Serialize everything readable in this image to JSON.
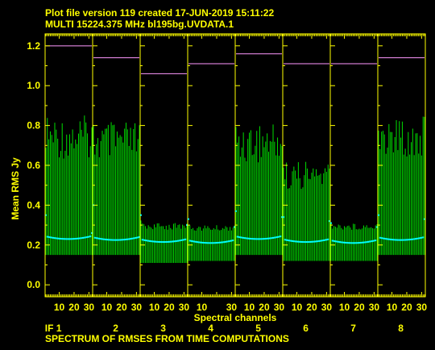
{
  "header": {
    "line1": "Plot file version 119  created 17-JUN-2019 15:11:22",
    "line2": "MULTI 15224.375 MHz  bl195bg.UVDATA.1"
  },
  "footer": "SPECTRUM OF RMSES FROM TIME COMPUTATIONS",
  "colors": {
    "background": "#000000",
    "axes_text": "#ffff00",
    "error_bars": "#00dd00",
    "points": "#00ffff",
    "reference_line": "#ff99ff"
  },
  "chart_data": {
    "type": "scatter",
    "title": "",
    "xlabel": "Spectral channels",
    "ylabel": "Mean RMS Jy",
    "ylim": [
      -0.06,
      1.26
    ],
    "yticks": [
      0.0,
      0.2,
      0.4,
      0.6,
      0.8,
      1.0,
      1.2
    ],
    "channels_per_if": 32,
    "panels": [
      {
        "if_label": "IF 1",
        "xticks": [
          "10",
          "20",
          "30"
        ],
        "reference": 1.2,
        "base": 0.23,
        "edge_low": 0.35,
        "edge_high": 0.26,
        "bar_low": 0.15,
        "bar_high": 0.85
      },
      {
        "if_label": "2",
        "xticks": [
          "10",
          "20",
          "30"
        ],
        "reference": 1.14,
        "base": 0.225,
        "edge_low": 0.4,
        "edge_high": 0.24,
        "bar_low": 0.15,
        "bar_high": 0.82
      },
      {
        "if_label": "3",
        "xticks": [
          "10",
          "20",
          "30"
        ],
        "reference": 1.06,
        "base": 0.215,
        "edge_low": 0.35,
        "edge_high": 0.3,
        "bar_low": 0.11,
        "bar_high": 0.31
      },
      {
        "if_label": "4",
        "xticks": [
          "10",
          "30"
        ],
        "reference": 1.11,
        "base": 0.21,
        "edge_low": 0.33,
        "edge_high": 0.29,
        "bar_low": 0.12,
        "bar_high": 0.3
      },
      {
        "if_label": "5",
        "xticks": [
          "10",
          "20",
          "30"
        ],
        "reference": 1.16,
        "base": 0.23,
        "edge_low": 0.37,
        "edge_high": 0.34,
        "bar_low": 0.15,
        "bar_high": 0.82
      },
      {
        "if_label": "6",
        "xticks": [
          "10",
          "20",
          "30"
        ],
        "reference": 1.11,
        "base": 0.215,
        "edge_low": 0.34,
        "edge_high": 0.32,
        "bar_low": 0.12,
        "bar_high": 0.62
      },
      {
        "if_label": "7",
        "xticks": [
          "10",
          "20",
          "30"
        ],
        "reference": 1.11,
        "base": 0.21,
        "edge_low": 0.31,
        "edge_high": 0.29,
        "bar_low": 0.12,
        "bar_high": 0.31
      },
      {
        "if_label": "8",
        "xticks": [
          "10",
          "20",
          "30"
        ],
        "reference": 1.14,
        "base": 0.225,
        "edge_low": 0.35,
        "edge_high": 0.33,
        "bar_low": 0.15,
        "bar_high": 0.85
      }
    ]
  }
}
